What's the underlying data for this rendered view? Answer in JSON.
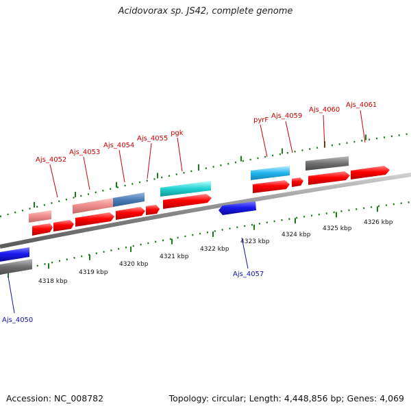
{
  "title": "Acidovorax sp. JS42, complete genome",
  "footer": {
    "accession": "Accession: NC_008782",
    "summary": "Topology: circular; Length: 4,448,856 bp; Genes: 4,069"
  },
  "colors": {
    "cds": "#ff0000",
    "rna": "#1a1aee",
    "label_top": "#cc0000",
    "label_bottom": "#1010aa",
    "ticks": "#1a7a1a",
    "backbone": "#8a8a8a"
  },
  "scale_ticks": [
    {
      "label": "4318 kbp"
    },
    {
      "label": "4319 kbp"
    },
    {
      "label": "4320 kbp"
    },
    {
      "label": "4321 kbp"
    },
    {
      "label": "4322 kbp"
    },
    {
      "label": "4323 kbp"
    },
    {
      "label": "4324 kbp"
    },
    {
      "label": "4325 kbp"
    },
    {
      "label": "4326 kbp"
    }
  ],
  "gene_labels_top": [
    "Ajs_4052",
    "Ajs_4053",
    "Ajs_4054",
    "Ajs_4055",
    "pgk",
    "pyrF",
    "Ajs_4059",
    "Ajs_4060",
    "Ajs_4061"
  ],
  "gene_labels_bottom": [
    "Ajs_4050",
    "Ajs_4057"
  ]
}
